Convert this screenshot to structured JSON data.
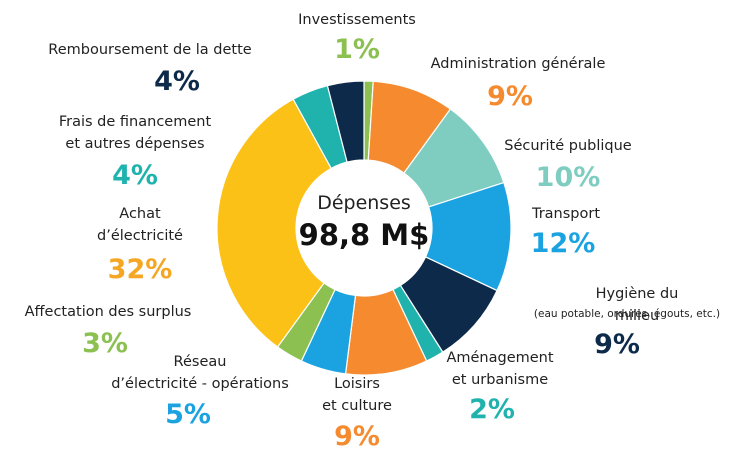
{
  "chart_data": {
    "type": "donut",
    "center_label": "Dépenses",
    "center_value": "98,8 M$",
    "categories": [
      "Investissements",
      "Administration générale",
      "Sécurité publique",
      "Transport",
      "Hygiène du milieu",
      "Aménagement\net urbanisme",
      "Loisirs\net culture",
      "Réseau\nd’électricité - opérations",
      "Affectation des surplus",
      "Achat\nd’électricité",
      "Frais de financement\net autres dépenses",
      "Remboursement de la dette"
    ],
    "values": [
      1,
      9,
      10,
      12,
      9,
      2,
      9,
      5,
      3,
      32,
      4,
      4
    ],
    "value_labels": [
      "1%",
      "9%",
      "10%",
      "12%",
      "9%",
      "2%",
      "9%",
      "5%",
      "3%",
      "32%",
      "4%",
      "4%"
    ],
    "colors": [
      "#8cc152",
      "#f58a2e",
      "#7fcdc1",
      "#1aa3e0",
      "#0d2a4a",
      "#20b3ae",
      "#f58a2e",
      "#1aa3e0",
      "#8cc152",
      "#fbc117",
      "#20b3ae",
      "#0d2a4a"
    ],
    "annotation": "(eau potable, ordures, égouts, etc.)"
  }
}
